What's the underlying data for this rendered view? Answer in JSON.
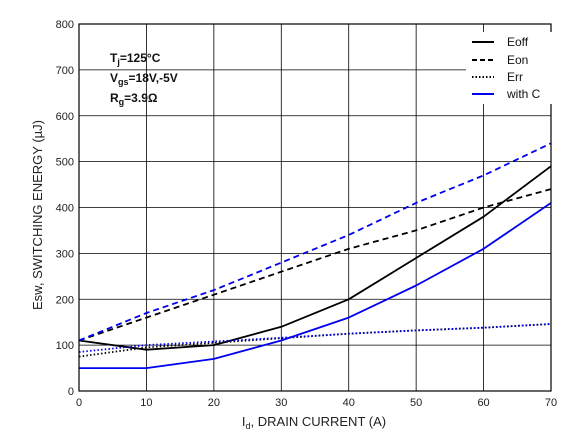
{
  "chart_data": {
    "type": "line",
    "xlabel": {
      "prefix": "I",
      "sub": "d",
      "rest": ", DRAIN CURRENT (A)"
    },
    "ylabel": "Esw, SWITCHING ENERGY (µJ)",
    "xlim": [
      0,
      70
    ],
    "ylim": [
      0,
      800
    ],
    "x_ticks": [
      0,
      10,
      20,
      30,
      40,
      50,
      60,
      70
    ],
    "y_ticks": [
      0,
      100,
      200,
      300,
      400,
      500,
      600,
      700,
      800
    ],
    "grid": true,
    "legend_position": "top-right",
    "conditions": [
      {
        "base": "T",
        "sub": "j",
        "rest": "=125°C"
      },
      {
        "base": "V",
        "sub": "gs",
        "rest": "=18V,-5V"
      },
      {
        "base": "R",
        "sub": "g",
        "rest": "=3.9Ω"
      }
    ],
    "legend": [
      {
        "label": "Eoff",
        "color": "#000000",
        "style": "solid"
      },
      {
        "label": "Eon",
        "color": "#000000",
        "style": "dashed"
      },
      {
        "label": "Err",
        "color": "#000000",
        "style": "dotted"
      },
      {
        "label": "with C",
        "color": "#0000ee",
        "style": "solid"
      }
    ],
    "series": [
      {
        "name": "Eoff",
        "color": "#000000",
        "style": "solid",
        "x": [
          0,
          10,
          20,
          30,
          40,
          50,
          60,
          70
        ],
        "y": [
          110,
          90,
          100,
          140,
          200,
          290,
          380,
          490
        ]
      },
      {
        "name": "Eon",
        "color": "#000000",
        "style": "dashed",
        "x": [
          0,
          10,
          20,
          30,
          40,
          50,
          60,
          70
        ],
        "y": [
          110,
          160,
          210,
          260,
          310,
          350,
          400,
          440
        ]
      },
      {
        "name": "Err",
        "color": "#000000",
        "style": "dotted",
        "x": [
          0,
          10,
          20,
          30,
          40,
          50,
          60,
          70
        ],
        "y": [
          75,
          95,
          105,
          115,
          125,
          132,
          138,
          146
        ]
      },
      {
        "name": "Eoff with C",
        "color": "#0000ee",
        "style": "solid",
        "x": [
          0,
          10,
          20,
          30,
          40,
          50,
          60,
          70
        ],
        "y": [
          50,
          50,
          70,
          110,
          160,
          230,
          310,
          410
        ]
      },
      {
        "name": "Eon with C",
        "color": "#0000ee",
        "style": "dashed",
        "x": [
          0,
          10,
          20,
          30,
          40,
          50,
          60,
          70
        ],
        "y": [
          110,
          170,
          220,
          280,
          340,
          410,
          470,
          540
        ]
      },
      {
        "name": "Err with C",
        "color": "#0000ee",
        "style": "dotted",
        "x": [
          0,
          10,
          20,
          30,
          40,
          50,
          60,
          70
        ],
        "y": [
          85,
          100,
          108,
          116,
          125,
          132,
          138,
          146
        ]
      }
    ]
  }
}
